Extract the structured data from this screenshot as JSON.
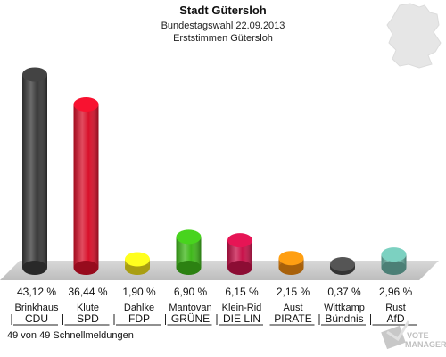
{
  "chart_data": {
    "type": "bar",
    "title": "Stadt Gütersloh",
    "subtitle": "Bundestagswahl 22.09.2013",
    "subtitle2": "Erststimmen Gütersloh",
    "unit": "%",
    "ylim": [
      0,
      45
    ],
    "categories": [
      {
        "candidate": "Brinkhaus",
        "party": "CDU",
        "value": 43.12,
        "label": "43,12 %",
        "color": "#3a3a3a"
      },
      {
        "candidate": "Klute",
        "party": "SPD",
        "value": 36.44,
        "label": "36,44 %",
        "color": "#d8102a"
      },
      {
        "candidate": "Dahlke",
        "party": "FDP",
        "value": 1.9,
        "label": "1,90 %",
        "color": "#f2e21a"
      },
      {
        "candidate": "Mantovan",
        "party": "GRÜNE",
        "value": 6.9,
        "label": "6,90 %",
        "color": "#3fb81a"
      },
      {
        "candidate": "Klein-Rid",
        "party": "DIE LIN",
        "value": 6.15,
        "label": "6,15 %",
        "color": "#c8124a"
      },
      {
        "candidate": "Aust",
        "party": "PIRATE",
        "value": 2.15,
        "label": "2,15 %",
        "color": "#f08a10"
      },
      {
        "candidate": "Wittkamp",
        "party": "Bündnis",
        "value": 0.37,
        "label": "0,37 %",
        "color": "#4a4a4a"
      },
      {
        "candidate": "Rust",
        "party": "AfD",
        "value": 2.96,
        "label": "2,96 %",
        "color": "#6cb6a8"
      }
    ]
  },
  "footer": {
    "reports": "49 von 49 Schnellmeldungen"
  },
  "logo": {
    "text": "VOTE MANAGER",
    "icon": "ballot-box-icon"
  },
  "map": {
    "icon": "germany-map-icon"
  }
}
